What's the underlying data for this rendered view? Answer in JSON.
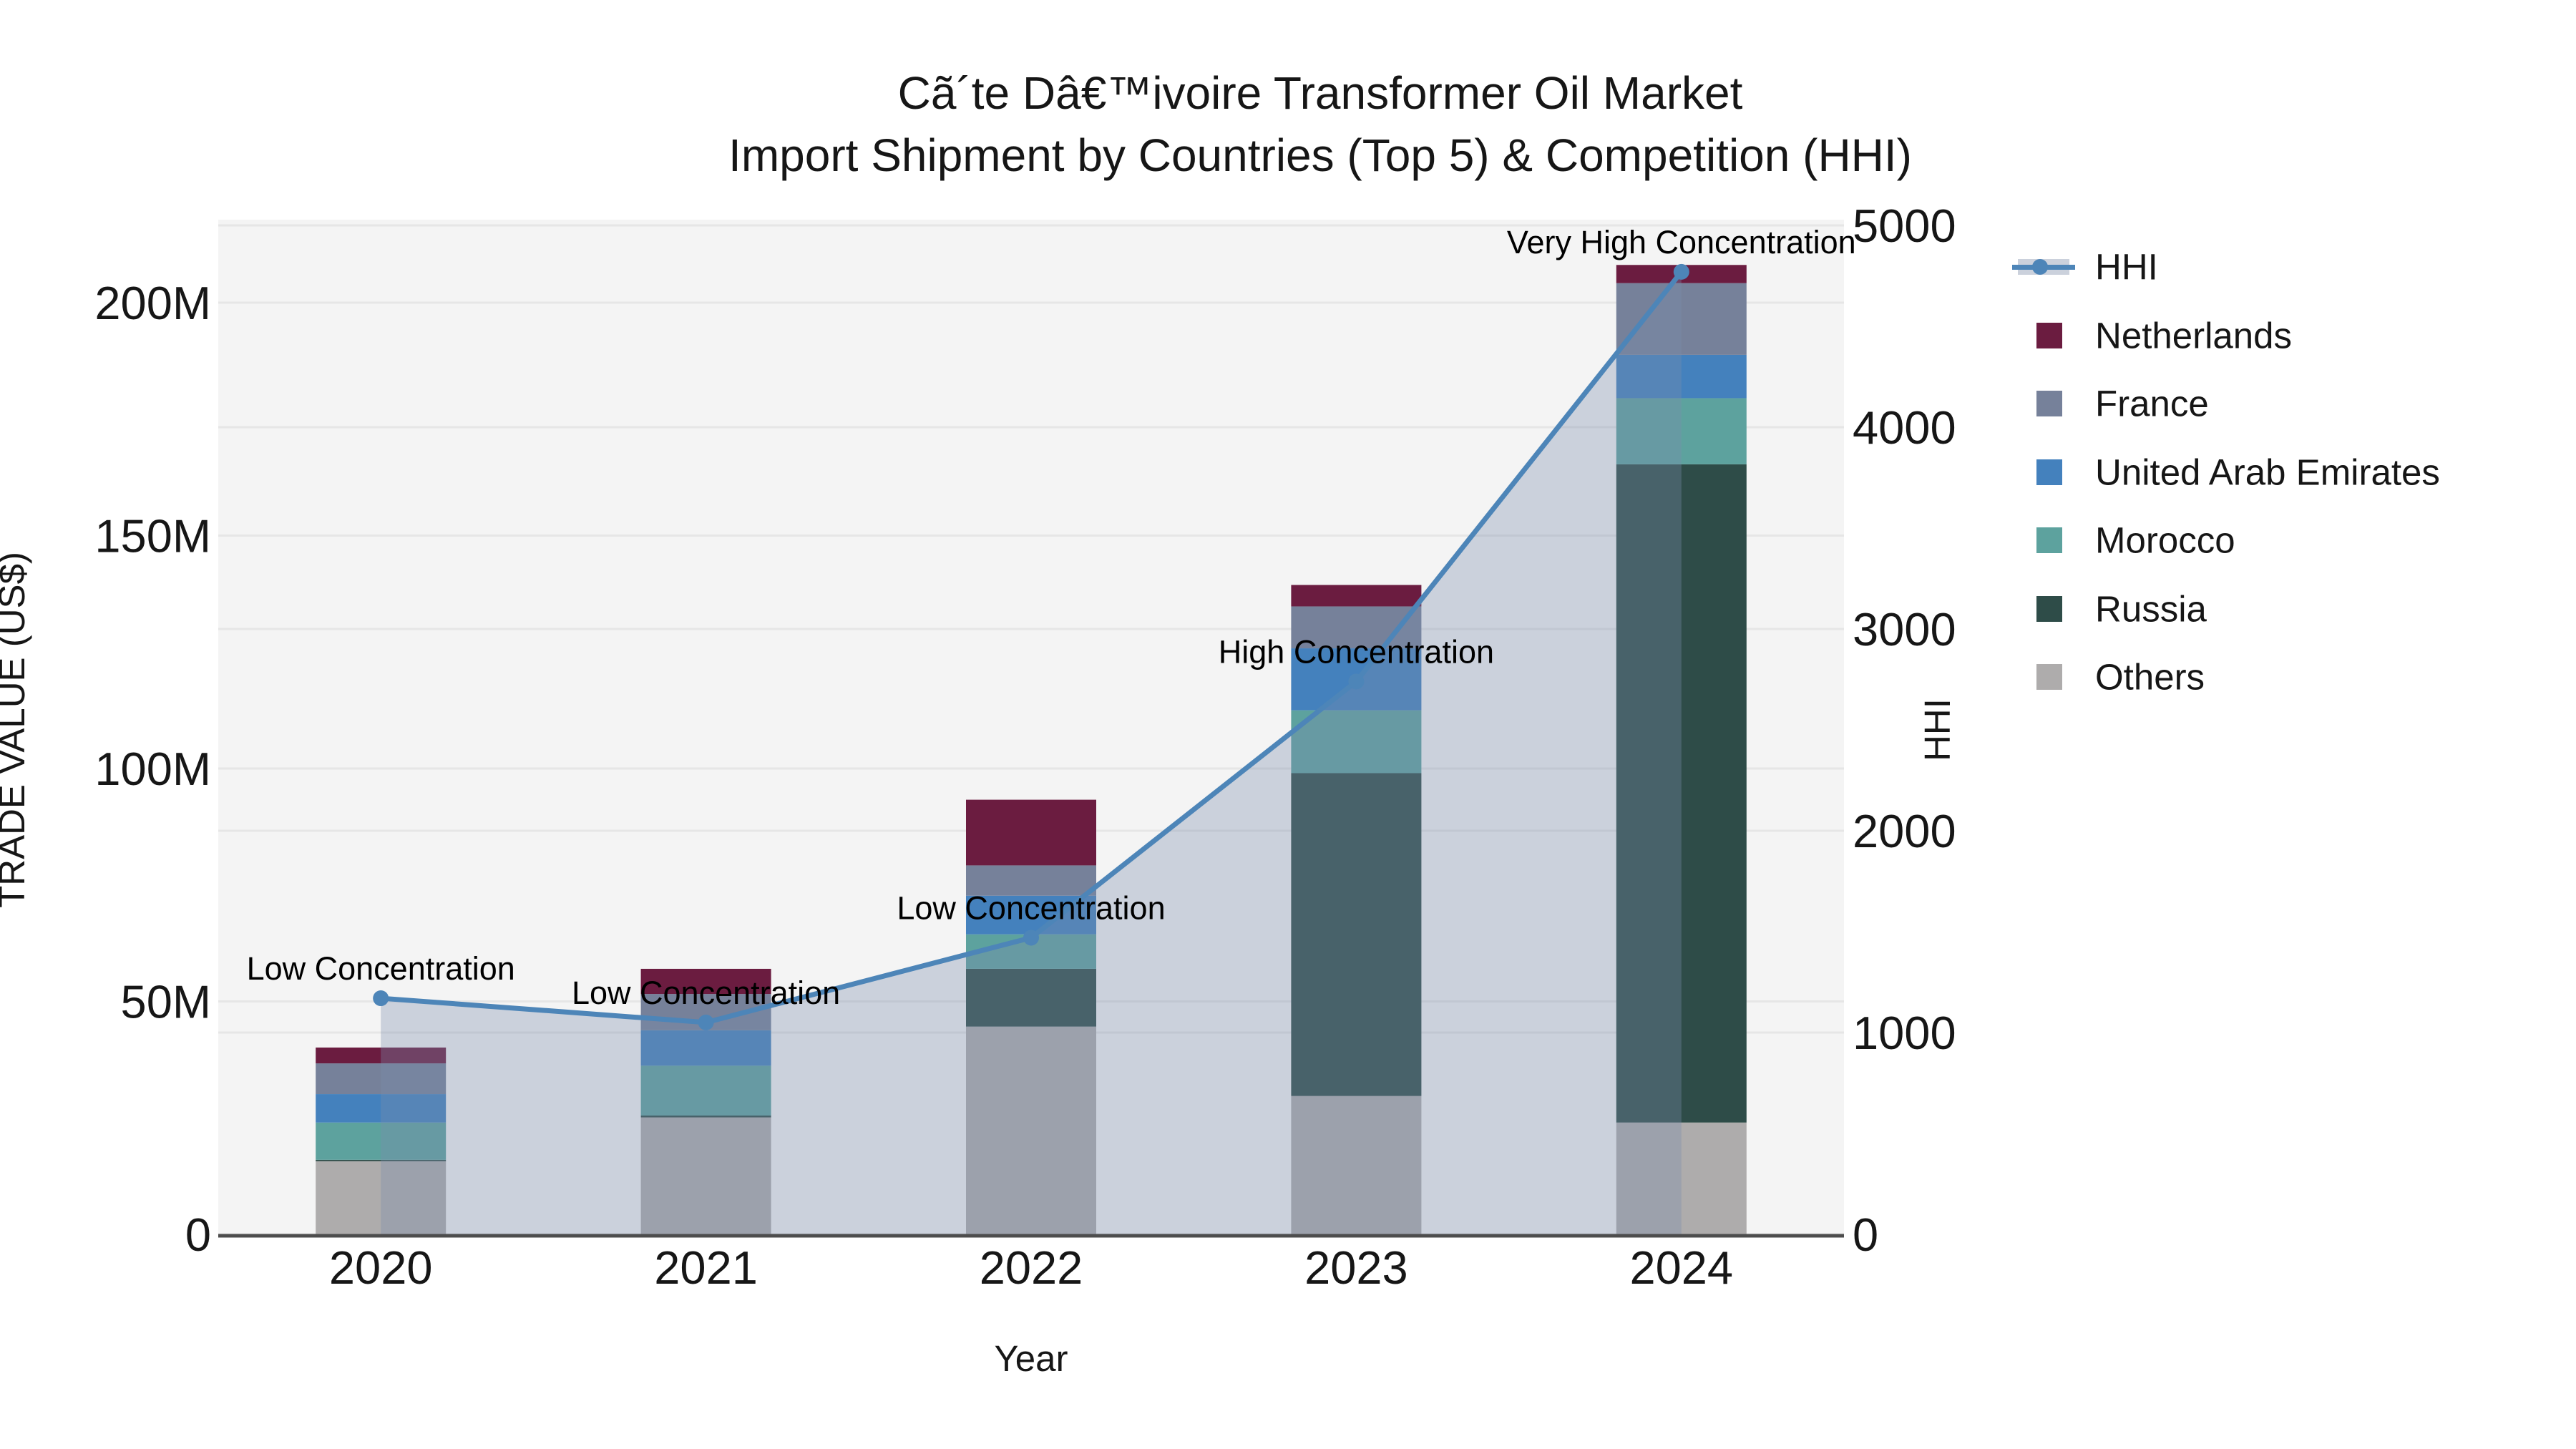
{
  "title": {
    "line1": "Cã´te Dâ€™ivoire Transformer Oil Market",
    "line2": "Import Shipment by Countries (Top 5) & Competition (HHI)"
  },
  "colors": {
    "plot_bg": "#f4f4f4",
    "grid": "#e6e6e6",
    "axis_line": "#4d4d4d",
    "text": "#161616",
    "hhi_line": "#4d85b8",
    "hhi_area": "rgba(123,140,174,0.34)",
    "hhi_legend_band": "#cbd1dc"
  },
  "legend": {
    "items": [
      {
        "label": "HHI",
        "type": "line",
        "color": "#4d85b8"
      },
      {
        "label": "Netherlands",
        "type": "swatch",
        "color": "#6b1c40"
      },
      {
        "label": "France",
        "type": "swatch",
        "color": "#76819a"
      },
      {
        "label": "United Arab Emirates",
        "type": "swatch",
        "color": "#4481bd"
      },
      {
        "label": "Morocco",
        "type": "swatch",
        "color": "#5da29e"
      },
      {
        "label": "Russia",
        "type": "swatch",
        "color": "#2e4c48"
      },
      {
        "label": "Others",
        "type": "swatch",
        "color": "#aeacac"
      }
    ]
  },
  "axes": {
    "x": {
      "title": "Year",
      "categories": [
        "2020",
        "2021",
        "2022",
        "2023",
        "2024"
      ]
    },
    "y_left": {
      "title": "TRADE VALUE (US$)",
      "tick_labels": [
        "0",
        "50M",
        "100M",
        "150M",
        "200M"
      ],
      "tick_values_musd": [
        0,
        50,
        100,
        150,
        200
      ],
      "max_musd": 200
    },
    "y_right": {
      "title": "HHI",
      "tick_labels": [
        "0",
        "1000",
        "2000",
        "3000",
        "4000",
        "5000"
      ],
      "tick_values": [
        0,
        1000,
        2000,
        3000,
        4000,
        5000
      ],
      "max": 5000
    }
  },
  "chart_data": {
    "type": "stacked-bar+line",
    "categories": [
      "2020",
      "2021",
      "2022",
      "2023",
      "2024"
    ],
    "bar_unit": "Trade value, million US$ (left axis, 0-200M)",
    "stack_order_bottom_to_top": [
      "Others",
      "Russia",
      "Morocco",
      "United Arab Emirates",
      "France",
      "Netherlands"
    ],
    "series": [
      {
        "name": "Netherlands",
        "color": "#6b1c40",
        "values": [
          3.4,
          5.4,
          14.1,
          4.6,
          3.9
        ]
      },
      {
        "name": "France",
        "color": "#76819a",
        "values": [
          6.6,
          7.8,
          6.5,
          9.0,
          15.4
        ]
      },
      {
        "name": "United Arab Emirates",
        "color": "#4481bd",
        "values": [
          6.1,
          7.6,
          8.3,
          13.3,
          9.3
        ]
      },
      {
        "name": "Morocco",
        "color": "#5da29e",
        "values": [
          8.0,
          10.7,
          7.4,
          13.5,
          14.2
        ]
      },
      {
        "name": "Russia",
        "color": "#2e4c48",
        "values": [
          0.3,
          0.4,
          12.4,
          69.3,
          141.3
        ]
      },
      {
        "name": "Others",
        "color": "#aeacac",
        "values": [
          15.7,
          25.1,
          44.6,
          29.7,
          24.0
        ]
      }
    ],
    "line_series": {
      "name": "HHI",
      "axis": "right",
      "values": [
        1170,
        1050,
        1470,
        2740,
        4770
      ],
      "annotations": [
        "Low Concentration",
        "Low Concentration",
        "Low Concentration",
        "High Concentration",
        "Very High Concentration"
      ]
    },
    "legend_position": "right",
    "grid": "horizontal gridlines for both y axes"
  }
}
